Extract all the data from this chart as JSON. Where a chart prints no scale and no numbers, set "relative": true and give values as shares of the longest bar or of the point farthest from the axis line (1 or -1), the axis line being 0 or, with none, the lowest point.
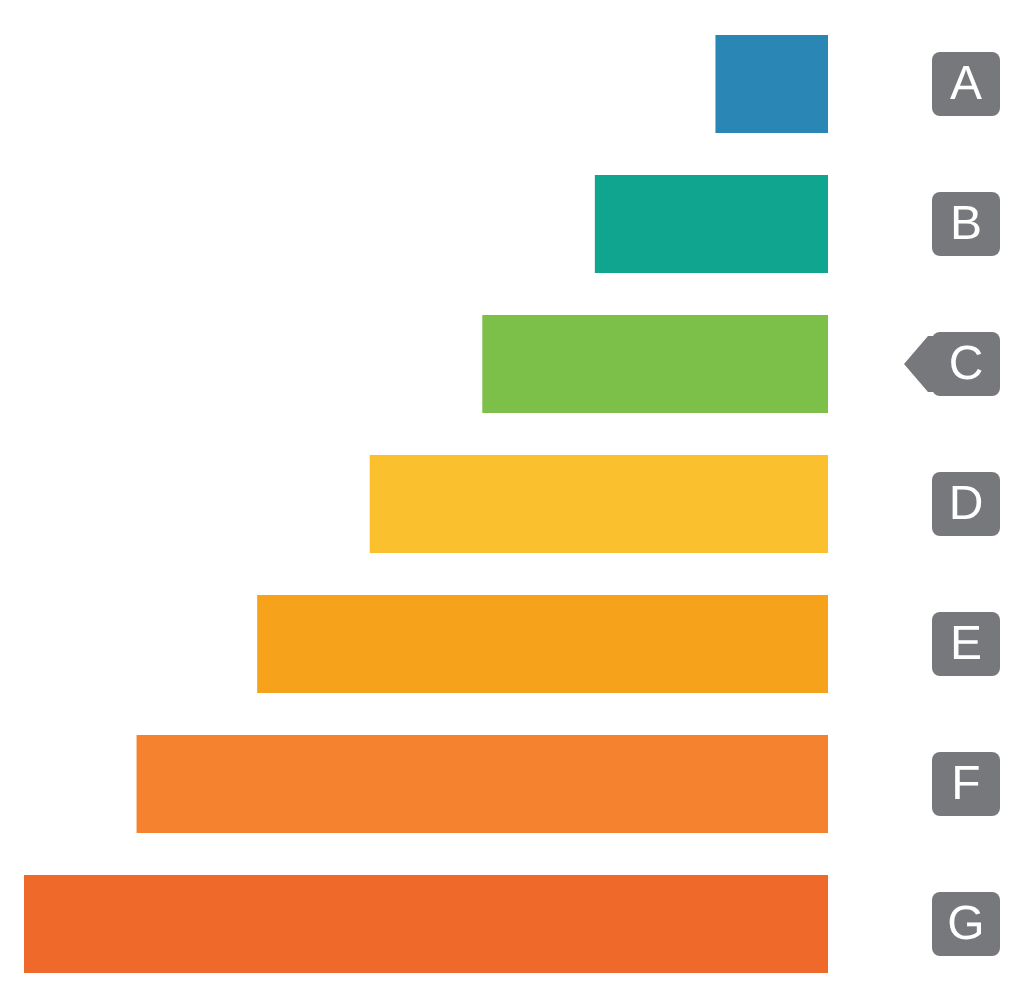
{
  "chart_data": {
    "type": "bar",
    "orientation": "horizontal",
    "relative": true,
    "categories": [
      "A",
      "B",
      "C",
      "D",
      "E",
      "F",
      "G"
    ],
    "values": [
      0.14,
      0.29,
      0.43,
      0.57,
      0.71,
      0.86,
      1
    ],
    "colors": [
      "#2a86b4",
      "#10a58f",
      "#7cc04a",
      "#fbc02d",
      "#f7a21b",
      "#f5822f",
      "#ef6a2a"
    ]
  }
}
